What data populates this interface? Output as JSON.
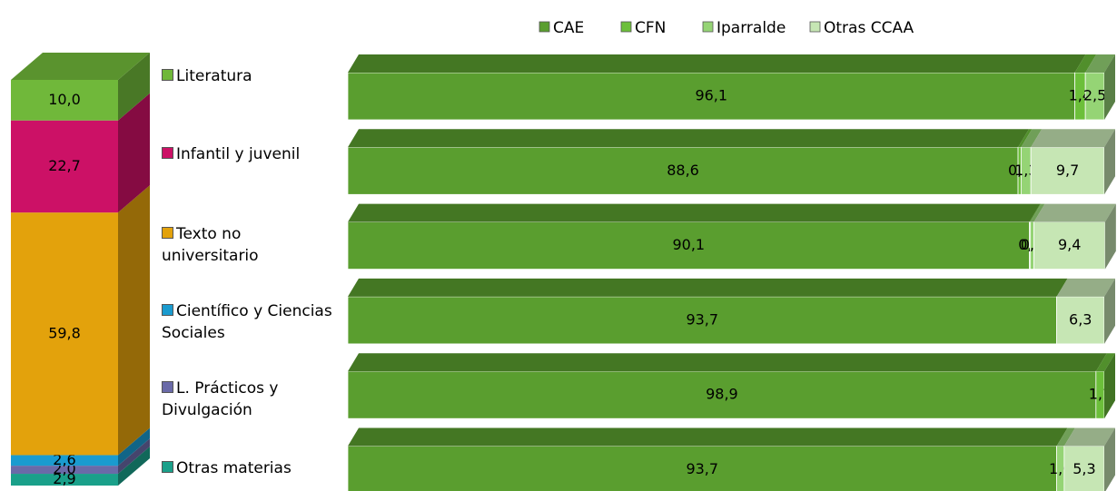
{
  "chart_data": [
    {
      "type": "stacked-column",
      "categories": [
        "Literatura",
        "Infantil y juvenil",
        "Texto no universitario",
        "Científico y Ciencias Sociales",
        "L. Prácticos y Divulgación",
        "Otras materias"
      ],
      "values": [
        10.0,
        22.7,
        59.8,
        2.6,
        2.0,
        2.9
      ],
      "value_labels": [
        "10,0",
        "22,7",
        "59,8",
        "2,6",
        "2,0",
        "2,9"
      ],
      "colors": [
        "#70b83a",
        "#cc1166",
        "#e3a20c",
        "#1a9bcf",
        "#6a6aa8",
        "#1aa08a"
      ],
      "ylim": [
        0,
        100
      ]
    },
    {
      "type": "stacked-bar",
      "legend": "top",
      "xlim": [
        0,
        100
      ],
      "series": [
        {
          "name": "CAE",
          "color": "#5a9e2f",
          "values": [
            96.1,
            88.6,
            90.1,
            93.7,
            98.9,
            93.7
          ],
          "value_labels": [
            "96,1",
            "88,6",
            "90,1",
            "93,7",
            "98,9",
            "93,7"
          ]
        },
        {
          "name": "CFN",
          "color": "#6cbf3a",
          "values": [
            1.4,
            0.4,
            0.1,
            null,
            1.1,
            null
          ],
          "value_labels": [
            "1,4",
            "0,4",
            "0,1",
            null,
            "1,1",
            null
          ]
        },
        {
          "name": "Iparralde",
          "color": "#95d475",
          "values": [
            2.5,
            1.3,
            0.5,
            null,
            null,
            1.0
          ],
          "value_labels": [
            "2,5",
            "1,3",
            "0,5",
            null,
            null,
            "1,0"
          ]
        },
        {
          "name": "Otras CCAA",
          "color": "#c6e6b4",
          "values": [
            null,
            9.7,
            9.4,
            6.3,
            null,
            5.3
          ],
          "value_labels": [
            null,
            "9,7",
            "9,4",
            "6,3",
            null,
            "5,3"
          ]
        }
      ]
    }
  ]
}
